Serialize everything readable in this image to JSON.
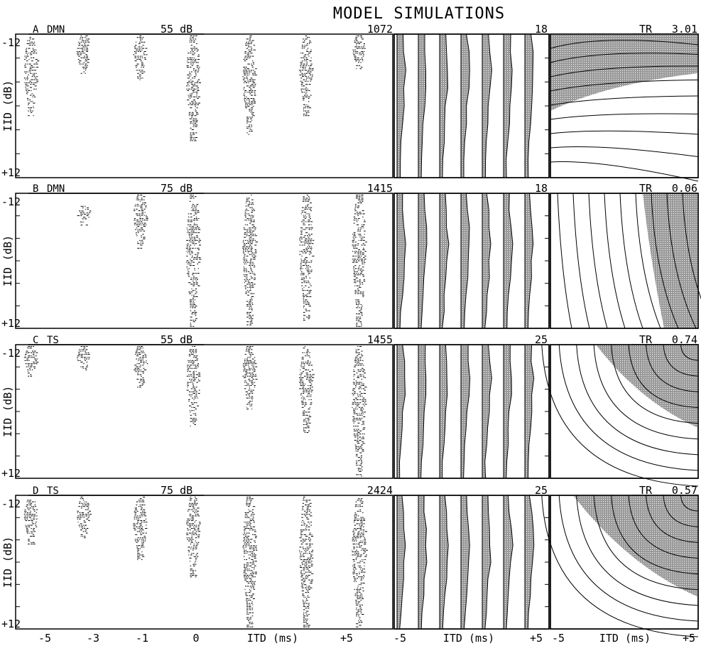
{
  "figure": {
    "title": "MODEL SIMULATIONS",
    "y_axis_label": "IID (dB)",
    "y_tick_labels": [
      "-12",
      "+12"
    ],
    "x_axis_label": "ITD (ms)",
    "raster_x_tick_labels": [
      "-5",
      "-3",
      "-1",
      "0",
      "+5"
    ],
    "contour_x_tick_labels": [
      "-5",
      "+5"
    ],
    "colors": {
      "ink": "#000000",
      "shade": "#6e6e6e",
      "paper": "#ffffff"
    }
  },
  "chart_data": [
    {
      "type": "scatter",
      "panel": "A",
      "model": "DMN",
      "level": "55 dB",
      "count": "1072",
      "xlim": [
        -5,
        5
      ],
      "ylim": [
        -12,
        12
      ],
      "peaks_ms": [
        -4.6,
        -3.2,
        -1.7,
        -0.3,
        1.2,
        2.7,
        4.1
      ],
      "dot_rows": [
        [
          -12,
          2
        ],
        [
          -12,
          -5
        ],
        [
          -12,
          -4
        ],
        [
          -12,
          6
        ],
        [
          -12,
          5
        ],
        [
          -12,
          2
        ],
        [
          -12,
          -6
        ]
      ]
    },
    {
      "type": "heatmap",
      "panel": "A",
      "count": "18"
    },
    {
      "type": "heatmap",
      "panel": "A",
      "statistic_label": "TR",
      "statistic_value": "3.01"
    },
    {
      "type": "scatter",
      "panel": "B",
      "model": "DMN",
      "level": "75 dB",
      "count": "1415",
      "xlim": [
        -5,
        5
      ],
      "ylim": [
        -12,
        12
      ],
      "peaks_ms": [
        -4.6,
        -3.2,
        -1.7,
        -0.3,
        1.2,
        2.7,
        4.1
      ],
      "dot_rows": [
        [
          0,
          0
        ],
        [
          -10,
          -6
        ],
        [
          -12,
          -2
        ],
        [
          -12,
          12
        ],
        [
          -12,
          12
        ],
        [
          -12,
          11
        ],
        [
          -12,
          12
        ]
      ]
    },
    {
      "type": "heatmap",
      "panel": "B",
      "count": "18"
    },
    {
      "type": "heatmap",
      "panel": "B",
      "statistic_label": "TR",
      "statistic_value": "0.06"
    },
    {
      "type": "scatter",
      "panel": "C",
      "model": "TS",
      "level": "55 dB",
      "count": "1455",
      "xlim": [
        -5,
        5
      ],
      "ylim": [
        -12,
        12
      ],
      "peaks_ms": [
        -4.6,
        -3.2,
        -1.7,
        -0.3,
        1.2,
        2.7,
        4.1
      ],
      "dot_rows": [
        [
          -12,
          -6
        ],
        [
          -12,
          -7
        ],
        [
          -12,
          -4
        ],
        [
          -12,
          3
        ],
        [
          -12,
          0
        ],
        [
          -12,
          4
        ],
        [
          -12,
          12
        ]
      ]
    },
    {
      "type": "heatmap",
      "panel": "C",
      "count": "25"
    },
    {
      "type": "heatmap",
      "panel": "C",
      "statistic_label": "TR",
      "statistic_value": "0.74"
    },
    {
      "type": "scatter",
      "panel": "D",
      "model": "TS",
      "level": "75 dB",
      "count": "2424",
      "xlim": [
        -5,
        5
      ],
      "ylim": [
        -12,
        12
      ],
      "peaks_ms": [
        -4.6,
        -3.2,
        -1.7,
        -0.3,
        1.2,
        2.7,
        4.1
      ],
      "dot_rows": [
        [
          -12,
          -3
        ],
        [
          -12,
          -4
        ],
        [
          -12,
          0
        ],
        [
          -12,
          3
        ],
        [
          -12,
          12
        ],
        [
          -12,
          12
        ],
        [
          -12,
          12
        ]
      ]
    },
    {
      "type": "heatmap",
      "panel": "D",
      "count": "25"
    },
    {
      "type": "heatmap",
      "panel": "D",
      "statistic_label": "TR",
      "statistic_value": "0.57"
    }
  ]
}
